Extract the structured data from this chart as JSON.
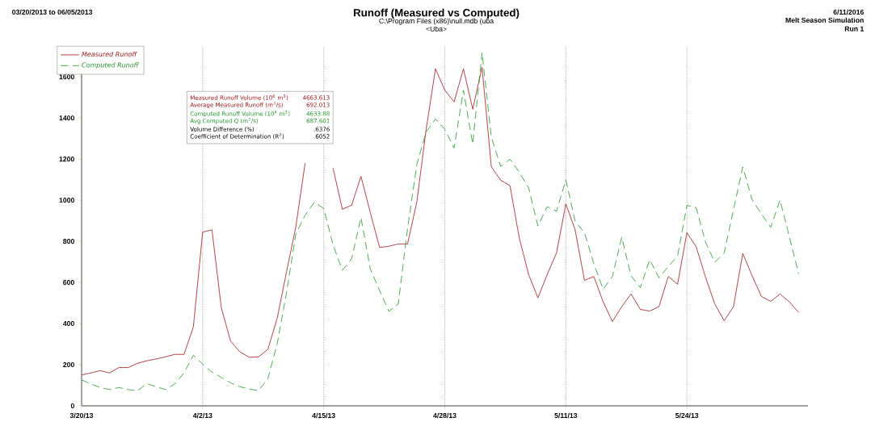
{
  "chart_data": {
    "type": "line",
    "title": "Runoff (Measured vs Computed)",
    "subtitle": "C:\\Program Files (x86)\\null.mdb (uba",
    "annotations": [
      "03/20/2013 to 06/05/2013",
      "<Uba>",
      "6/11/2016",
      "Melt Season Simulation",
      "Run 1",
      "Measured Runoff Volume (10$^{6}$ m$^{3}$)",
      "4663.613",
      "Average Measured Runoff  (m$^{3}$/s)",
      "692.013",
      "Computed Runoff Volume (10$^{6}$ m$^{3}$)",
      "4633.88",
      "Avg Computed Q  (m$^{3}$/s)",
      "687.601",
      "Volume Difference (%)",
      ".6376",
      "Coefficient of Determination (R$^{2}$)",
      ".6052"
    ],
    "x": [
      "2013-03-20",
      "2013-03-21",
      "2013-03-22",
      "2013-03-23",
      "2013-03-24",
      "2013-03-25",
      "2013-03-26",
      "2013-03-27",
      "2013-03-28",
      "2013-03-29",
      "2013-03-30",
      "2013-03-31",
      "2013-04-01",
      "2013-04-02",
      "2013-04-03",
      "2013-04-04",
      "2013-04-05",
      "2013-04-06",
      "2013-04-07",
      "2013-04-08",
      "2013-04-09",
      "2013-04-10",
      "2013-04-11",
      "2013-04-12",
      "2013-04-13",
      "2013-04-14",
      "2013-04-15",
      "2013-04-16",
      "2013-04-17",
      "2013-04-18",
      "2013-04-19",
      "2013-04-20",
      "2013-04-21",
      "2013-04-22",
      "2013-04-23",
      "2013-04-24",
      "2013-04-25",
      "2013-04-26",
      "2013-04-27",
      "2013-04-28",
      "2013-04-29",
      "2013-04-30",
      "2013-05-01",
      "2013-05-02",
      "2013-05-03",
      "2013-05-04",
      "2013-05-05",
      "2013-05-06",
      "2013-05-07",
      "2013-05-08",
      "2013-05-09",
      "2013-05-10",
      "2013-05-11",
      "2013-05-12",
      "2013-05-13",
      "2013-05-14",
      "2013-05-15",
      "2013-05-16",
      "2013-05-17",
      "2013-05-18",
      "2013-05-19",
      "2013-05-20",
      "2013-05-21",
      "2013-05-22",
      "2013-05-23",
      "2013-05-24",
      "2013-05-25",
      "2013-05-26",
      "2013-05-27",
      "2013-05-28",
      "2013-05-29",
      "2013-05-30",
      "2013-05-31",
      "2013-06-01",
      "2013-06-02",
      "2013-06-03",
      "2013-06-04",
      "2013-06-05"
    ],
    "series": [
      {
        "name": "Measured Runoff",
        "color": "#a01818",
        "line_style": "solid",
        "values": [
          150,
          160,
          171,
          160,
          186,
          186,
          207,
          219,
          228,
          238,
          250,
          250,
          384,
          845,
          856,
          477,
          314,
          262,
          236,
          238,
          275,
          425,
          650,
          870,
          1180,
          null,
          null,
          1156,
          956,
          976,
          1116,
          940,
          770,
          776,
          787,
          787,
          992,
          1345,
          1639,
          1535,
          1478,
          1639,
          1443,
          1646,
          1162,
          1097,
          1071,
          816,
          639,
          525,
          639,
          744,
          982,
          855,
          610,
          629,
          506,
          410,
          482,
          544,
          469,
          461,
          482,
          629,
          591,
          842,
          773,
          626,
          495,
          414,
          482,
          741,
          633,
          532,
          508,
          544,
          506,
          454
        ]
      },
      {
        "name": "Computed Runoff",
        "color": "#22962a",
        "line_style": "dashed",
        "values": [
          126,
          106,
          89,
          79,
          89,
          79,
          73,
          108,
          93,
          79,
          106,
          160,
          246,
          203,
          164,
          138,
          112,
          93,
          82,
          73,
          132,
          301,
          549,
          835,
          927,
          990,
          960,
          783,
          659,
          715,
          916,
          665,
          561,
          459,
          495,
          861,
          1175,
          1332,
          1395,
          1345,
          1254,
          1535,
          1273,
          1718,
          1306,
          1165,
          1199,
          1136,
          1060,
          875,
          969,
          946,
          1099,
          897,
          842,
          692,
          567,
          629,
          820,
          633,
          574,
          711,
          622,
          678,
          728,
          975,
          963,
          796,
          698,
          744,
          953,
          1162,
          1003,
          933,
          868,
          1001,
          822,
          642
        ]
      }
    ],
    "xlim": [
      "2013-03-20",
      "2013-06-06"
    ],
    "xticks": [
      {
        "value": "2013-03-20",
        "label": "3/20/13"
      },
      {
        "value": "2013-04-02",
        "label": "4/2/13"
      },
      {
        "value": "2013-04-15",
        "label": "4/15/13"
      },
      {
        "value": "2013-04-28",
        "label": "4/28/13"
      },
      {
        "value": "2013-05-11",
        "label": "5/11/13"
      },
      {
        "value": "2013-05-24",
        "label": "5/24/13"
      }
    ],
    "ylim": [
      0,
      1750
    ],
    "yticks": [
      0,
      200,
      400,
      600,
      800,
      1000,
      1200,
      1400,
      1600
    ],
    "grid": "x",
    "legend": "top left"
  }
}
